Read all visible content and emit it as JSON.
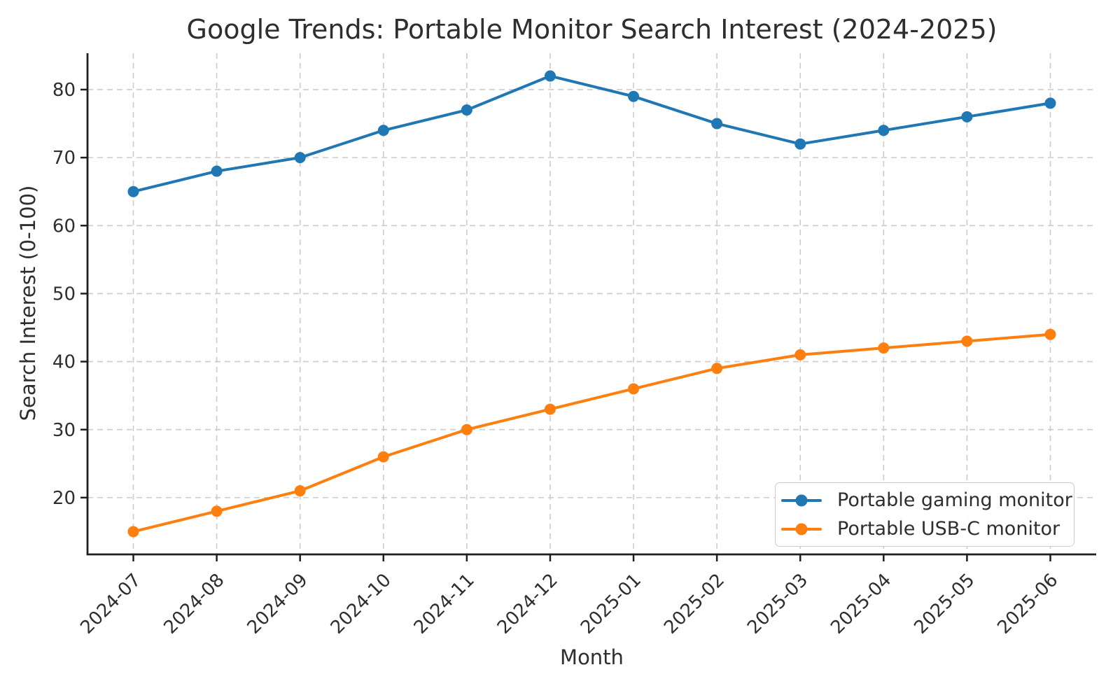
{
  "chart_data": {
    "type": "line",
    "title": "Google Trends: Portable Monitor Search Interest (2024-2025)",
    "xlabel": "Month",
    "ylabel": "Search Interest (0-100)",
    "categories": [
      "2024-07",
      "2024-08",
      "2024-09",
      "2024-10",
      "2024-11",
      "2024-12",
      "2025-01",
      "2025-02",
      "2025-03",
      "2025-04",
      "2025-05",
      "2025-06"
    ],
    "series": [
      {
        "name": "Portable gaming monitor",
        "color": "#1f77b4",
        "values": [
          65,
          68,
          70,
          74,
          77,
          82,
          79,
          75,
          72,
          74,
          76,
          78
        ]
      },
      {
        "name": "Portable USB-C monitor",
        "color": "#ff7f0e",
        "values": [
          15,
          18,
          21,
          26,
          30,
          33,
          36,
          39,
          41,
          42,
          43,
          44
        ]
      }
    ],
    "yticks": [
      20,
      30,
      40,
      50,
      60,
      70,
      80
    ],
    "ylim": [
      11.65,
      85.35
    ],
    "xlim_pad": 0.55,
    "grid": true,
    "grid_color": "#cccccc",
    "axis_color": "#1f1f1f",
    "text_color": "#2e2e2e",
    "legend_position": "lower right",
    "marker": "circle",
    "line_width": 4,
    "marker_radius": 8
  }
}
